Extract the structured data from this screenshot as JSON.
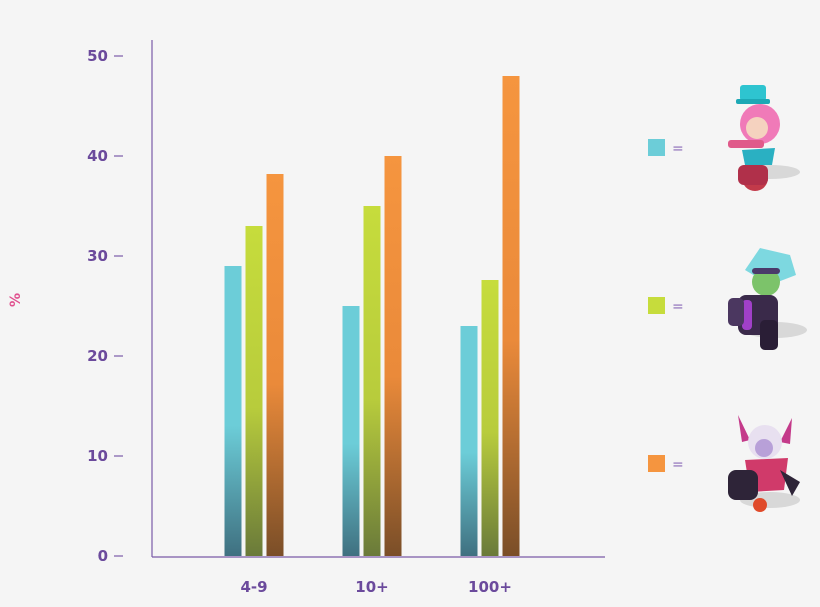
{
  "chart_data": {
    "type": "bar",
    "ylabel": "%",
    "xlabel": "",
    "title": "",
    "ylim": [
      0,
      52
    ],
    "yticks": [
      0,
      10,
      20,
      30,
      40,
      50
    ],
    "categories": [
      "4-9",
      "10+",
      "100+"
    ],
    "series": [
      {
        "values": [
          29,
          25,
          23
        ],
        "color": "#6ccdd8"
      },
      {
        "values": [
          33,
          35,
          27.6
        ],
        "color": "#c6dc3c"
      },
      {
        "values": [
          38.2,
          40,
          48
        ],
        "color": "#f5953f"
      }
    ],
    "legend": {
      "placement": "right",
      "entries": [
        {
          "symbol": "=",
          "color": "#6ccdd8",
          "icon": "character-pink-hair-top-hat-cannon"
        },
        {
          "symbol": "=",
          "color": "#c6dc3c",
          "icon": "character-blue-hair-goggles-dark-armor"
        },
        {
          "symbol": "=",
          "color": "#f5953f",
          "icon": "character-horned-dark-devil-cannon"
        }
      ]
    },
    "grid": false
  }
}
